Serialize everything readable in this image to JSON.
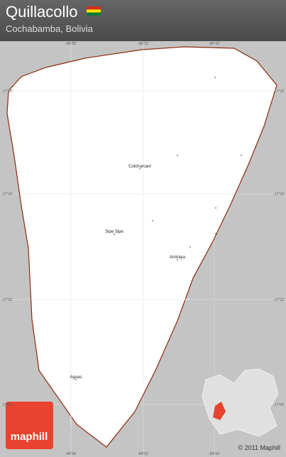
{
  "header": {
    "title": "Quillacollo",
    "subtitle": "Cochabamba, Bolivia"
  },
  "grid": {
    "longitudes": [
      "-66°26'",
      "-66°21'",
      "-66°15'"
    ],
    "latitudes": [
      "-17°16'",
      "-17°24'",
      "-17°32'",
      "-17°40'"
    ]
  },
  "places": [
    "Colcharcani",
    "Sipe Sipe",
    "Amiraya",
    "Aguas"
  ],
  "footer": {
    "copyright": "© 2011 Maphill",
    "logo": "maphill"
  }
}
